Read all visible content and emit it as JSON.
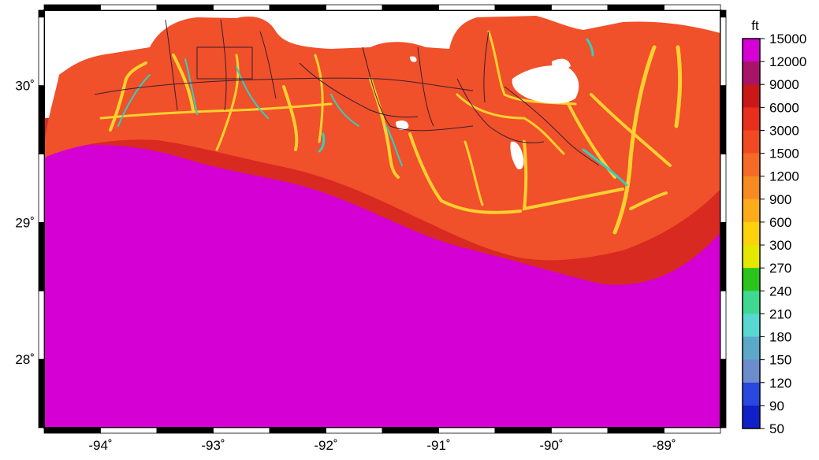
{
  "map": {
    "longitude_ticks": [
      {
        "value": -94,
        "label": "-94˚"
      },
      {
        "value": -93,
        "label": "-93˚"
      },
      {
        "value": -92,
        "label": "-92˚"
      },
      {
        "value": -91,
        "label": "-91˚"
      },
      {
        "value": -90,
        "label": "-90˚"
      },
      {
        "value": -89,
        "label": "-89˚"
      }
    ],
    "latitude_ticks": [
      {
        "value": 30,
        "label": "30˚"
      },
      {
        "value": 29,
        "label": "29˚"
      },
      {
        "value": 28,
        "label": "28˚"
      }
    ],
    "extent": {
      "lon": [
        -94.5,
        -88.5
      ],
      "lat": [
        27.5,
        30.55
      ]
    },
    "colors": {
      "ocean": "#d400d4",
      "land": "#f0502a",
      "coast_band": "#d82a20",
      "channel": "#ffd030",
      "stream": "#30d0c0",
      "lake": "#ffffff",
      "road": "#3a2030"
    }
  },
  "colorbar": {
    "unit": "ft",
    "levels": [
      {
        "label": "15000",
        "color": "#d400d4"
      },
      {
        "label": "12000",
        "color": "#a81468"
      },
      {
        "label": "9000",
        "color": "#c81818"
      },
      {
        "label": "6000",
        "color": "#e82e1c"
      },
      {
        "label": "3000",
        "color": "#f04a22"
      },
      {
        "label": "1500",
        "color": "#f46a26"
      },
      {
        "label": "1200",
        "color": "#f88a22"
      },
      {
        "label": "900",
        "color": "#fcac1a"
      },
      {
        "label": "600",
        "color": "#fcd20c"
      },
      {
        "label": "300",
        "color": "#e4e800"
      },
      {
        "label": "270",
        "color": "#2cc41c"
      },
      {
        "label": "240",
        "color": "#40d890"
      },
      {
        "label": "210",
        "color": "#58d8d0"
      },
      {
        "label": "180",
        "color": "#5ca8c8"
      },
      {
        "label": "150",
        "color": "#6c8ccc"
      },
      {
        "label": "120",
        "color": "#2848e0"
      },
      {
        "label": "90",
        "color": "#1020c8"
      },
      {
        "label": "50",
        "color": "#0a1478"
      }
    ]
  }
}
